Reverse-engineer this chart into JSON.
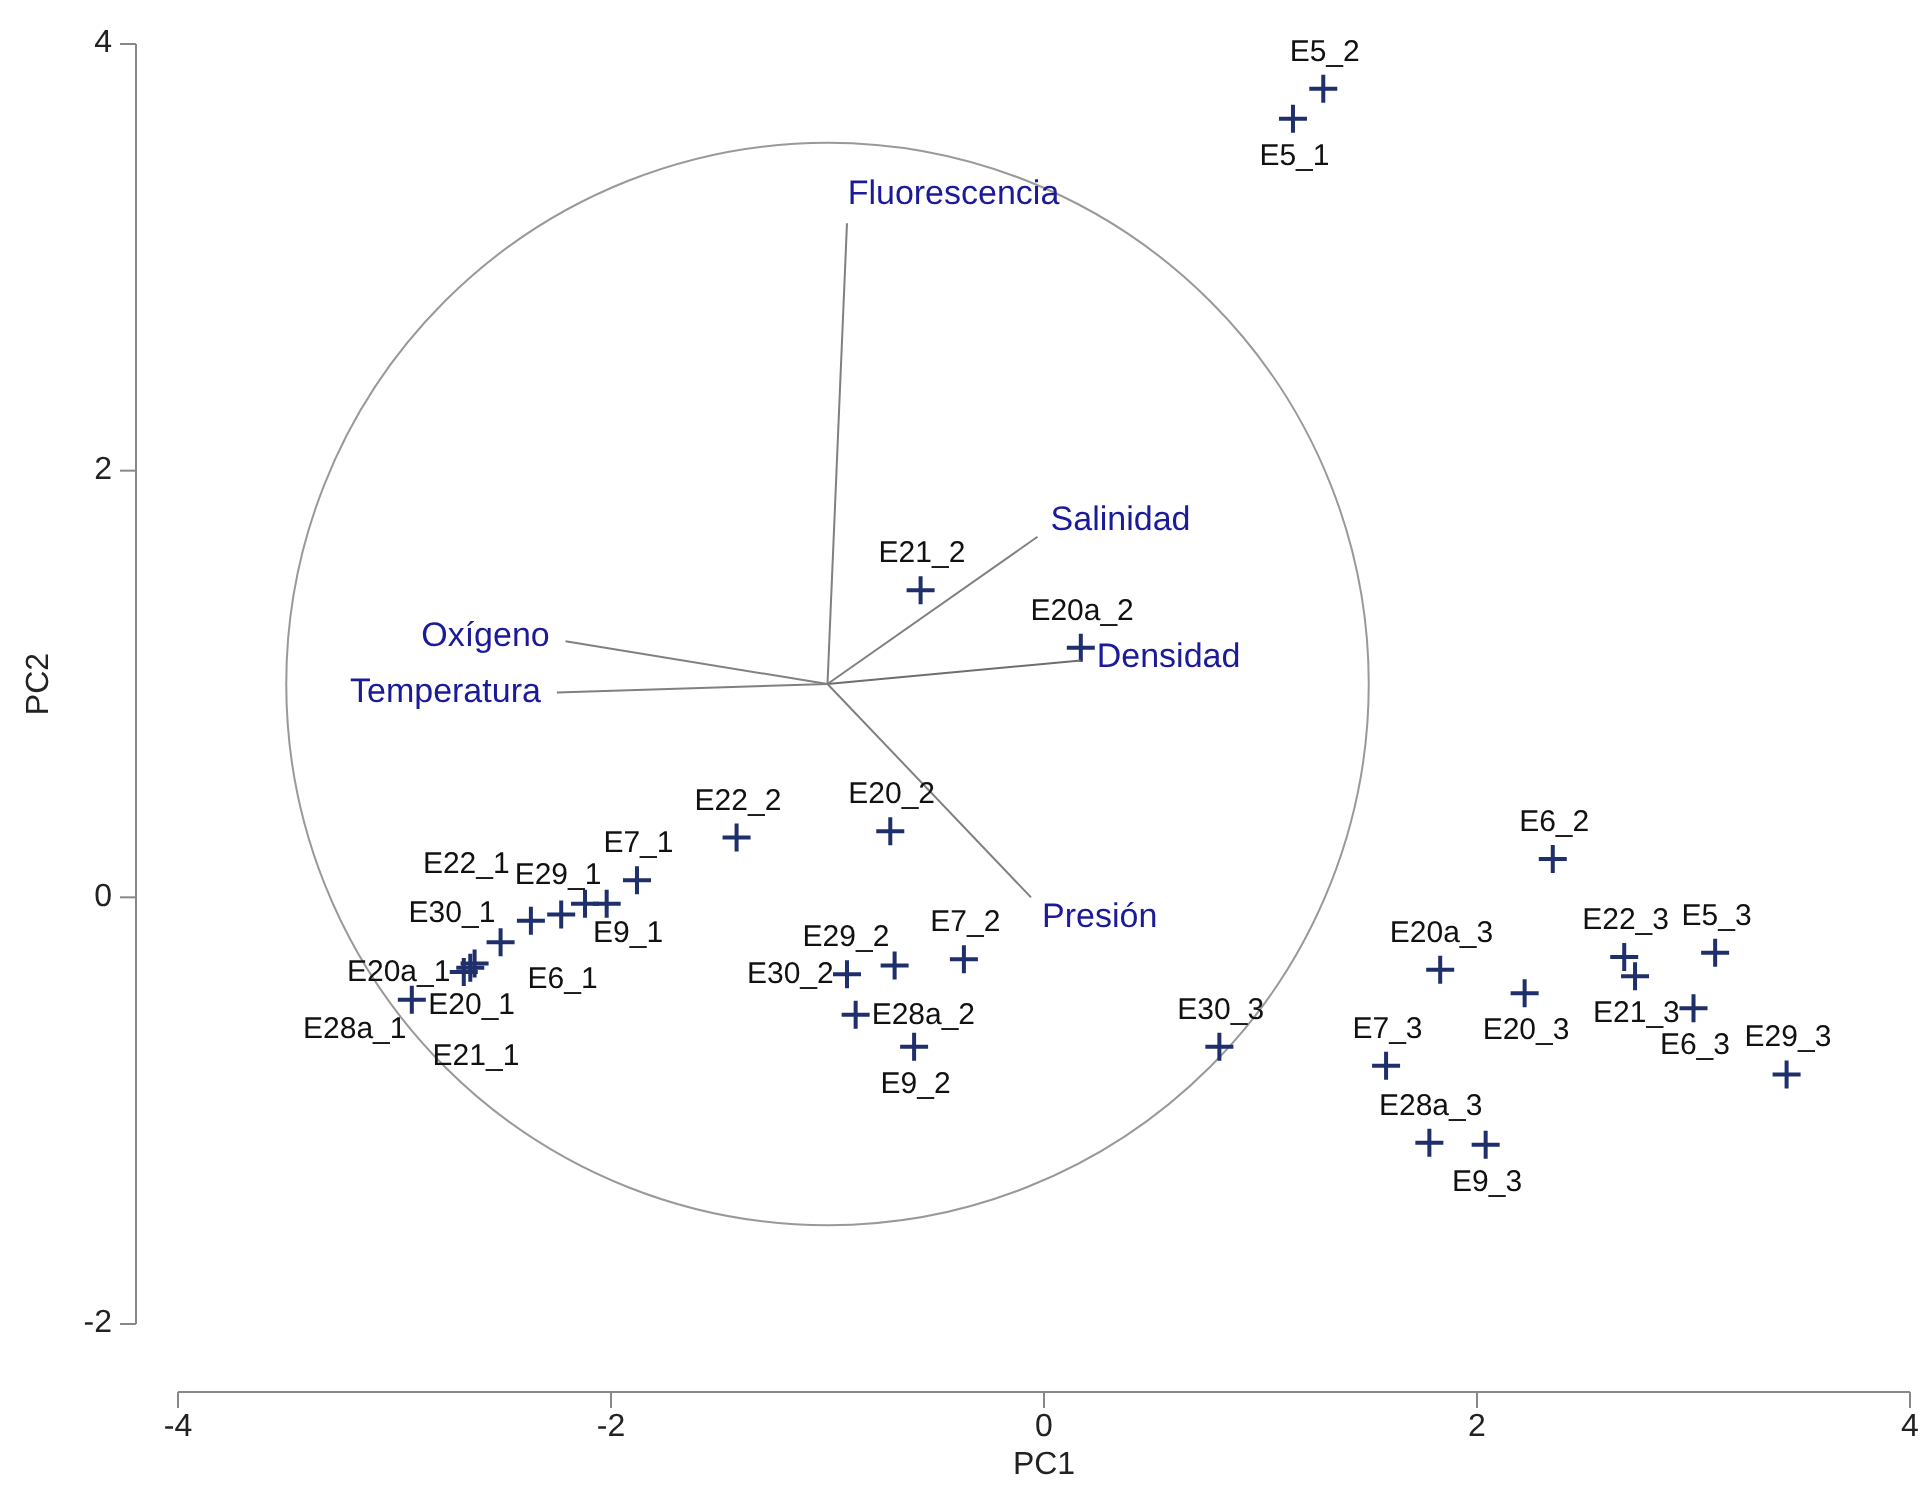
{
  "chart_data": {
    "type": "scatter",
    "xlabel": "PC1",
    "ylabel": "PC2",
    "xlim": [
      -4,
      4
    ],
    "ylim": [
      -2,
      4
    ],
    "xticks": [
      -4,
      -2,
      0,
      2,
      4
    ],
    "yticks": [
      -2,
      0,
      2,
      4
    ],
    "grid": false,
    "legend": false,
    "series": [
      {
        "color": "#1f2f6b",
        "marker": "cross",
        "x": [
          1.15,
          1.29,
          -0.57,
          0.17,
          -0.71,
          -1.42,
          -0.37,
          -0.69,
          -0.91,
          -0.87,
          -0.6,
          2.35,
          1.83,
          2.22,
          2.68,
          2.73,
          3.1,
          3.0,
          3.43,
          0.81,
          1.58,
          1.78,
          2.04,
          -1.88,
          -2.02,
          -2.12,
          -2.23,
          -2.37,
          -2.51,
          -2.65,
          -2.68,
          -2.63,
          -2.92
        ],
        "values": [
          3.65,
          3.79,
          1.44,
          1.17,
          0.31,
          0.28,
          -0.29,
          -0.32,
          -0.36,
          -0.55,
          -0.7,
          0.18,
          -0.34,
          -0.45,
          -0.28,
          -0.37,
          -0.26,
          -0.52,
          -0.83,
          -0.7,
          -0.79,
          -1.15,
          -1.16,
          0.08,
          -0.03,
          -0.03,
          -0.08,
          -0.11,
          -0.21,
          -0.33,
          -0.35,
          -0.31,
          -0.48
        ]
      },
      {
        "type": "line",
        "name": "Fluorescencia",
        "color": "#808080",
        "x": [
          -1.0,
          -0.91
        ],
        "values": [
          1.0,
          3.16
        ]
      },
      {
        "type": "line",
        "name": "Salinidad",
        "color": "#808080",
        "x": [
          -1.0,
          -0.03
        ],
        "values": [
          1.0,
          1.69
        ]
      },
      {
        "type": "line",
        "name": "Densidad",
        "color": "#6e6e6e",
        "x": [
          -1.0,
          0.17
        ],
        "values": [
          1.0,
          1.11
        ]
      },
      {
        "type": "line",
        "name": "Oxígeno",
        "color": "#808080",
        "x": [
          -1.0,
          -2.21
        ],
        "values": [
          1.0,
          1.2
        ]
      },
      {
        "type": "line",
        "name": "Temperatura",
        "color": "#808080",
        "x": [
          -1.0,
          -2.25
        ],
        "values": [
          1.0,
          0.96
        ]
      },
      {
        "type": "line",
        "name": "Presión",
        "color": "#808080",
        "x": [
          -1.0,
          -0.06
        ],
        "values": [
          1.0,
          0.0
        ]
      }
    ],
    "annotations": [
      {
        "text": "E5_1",
        "x": 1.15,
        "y": 3.65
      },
      {
        "text": "E5_2",
        "x": 1.29,
        "y": 3.79
      },
      {
        "text": "E21_2",
        "x": -0.57,
        "y": 1.44
      },
      {
        "text": "E20a_2",
        "x": 0.17,
        "y": 1.17
      },
      {
        "text": "E20_2",
        "x": -0.71,
        "y": 0.31
      },
      {
        "text": "E22_2",
        "x": -1.42,
        "y": 0.28
      },
      {
        "text": "E7_2",
        "x": -0.37,
        "y": -0.29
      },
      {
        "text": "E29_2",
        "x": -0.69,
        "y": -0.32
      },
      {
        "text": "E30_2",
        "x": -0.91,
        "y": -0.36
      },
      {
        "text": "E28a_2",
        "x": -0.87,
        "y": -0.55
      },
      {
        "text": "E9_2",
        "x": -0.6,
        "y": -0.7
      },
      {
        "text": "E6_2",
        "x": 2.35,
        "y": 0.18
      },
      {
        "text": "E20a_3",
        "x": 1.83,
        "y": -0.34
      },
      {
        "text": "E20_3",
        "x": 2.22,
        "y": -0.45
      },
      {
        "text": "E22_3",
        "x": 2.68,
        "y": -0.28
      },
      {
        "text": "E21_3",
        "x": 2.73,
        "y": -0.37
      },
      {
        "text": "E5_3",
        "x": 3.1,
        "y": -0.26
      },
      {
        "text": "E6_3",
        "x": 3.0,
        "y": -0.52
      },
      {
        "text": "E29_3",
        "x": 3.43,
        "y": -0.83
      },
      {
        "text": "E30_3",
        "x": 0.81,
        "y": -0.7
      },
      {
        "text": "E7_3",
        "x": 1.58,
        "y": -0.79
      },
      {
        "text": "E28a_3",
        "x": 1.78,
        "y": -1.15
      },
      {
        "text": "E9_3",
        "x": 2.04,
        "y": -1.16
      },
      {
        "text": "E7_1",
        "x": -1.88,
        "y": 0.08
      },
      {
        "text": "E29_1",
        "x": -2.02,
        "y": -0.03
      },
      {
        "text": "E9_1",
        "x": -2.12,
        "y": -0.03
      },
      {
        "text": "E6_1",
        "x": -2.23,
        "y": -0.08
      },
      {
        "text": "E22_1",
        "x": -2.37,
        "y": -0.11
      },
      {
        "text": "E30_1",
        "x": -2.51,
        "y": -0.21
      },
      {
        "text": "E20_1",
        "x": -2.65,
        "y": -0.33
      },
      {
        "text": "E20a_1",
        "x": -2.68,
        "y": -0.35
      },
      {
        "text": "E21_1",
        "x": -2.63,
        "y": -0.31
      },
      {
        "text": "E28a_1",
        "x": -2.92,
        "y": -0.48
      }
    ]
  }
}
